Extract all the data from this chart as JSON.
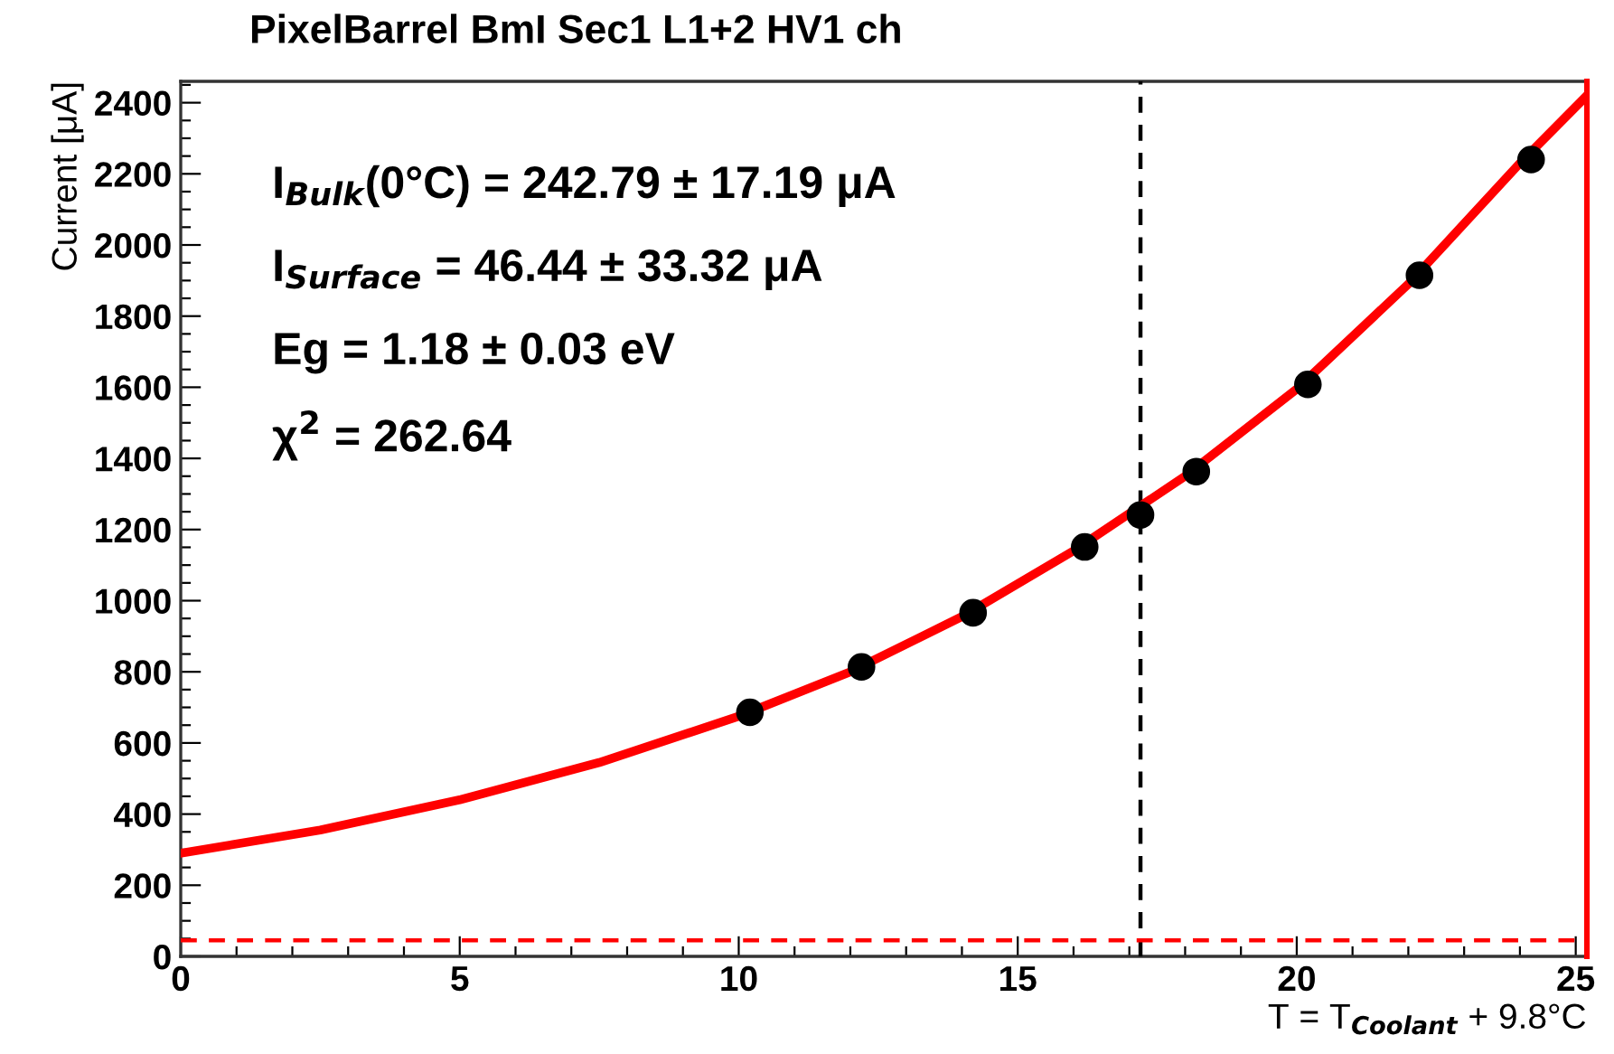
{
  "chart_data": {
    "type": "scatter",
    "title": "PixelBarrel BmI Sec1 L1+2 HV1 ch",
    "xlabel": "T = T$_{Coolant}$ + 9.8°C",
    "ylabel": "Current [μA]",
    "series": [
      {
        "color": "#000000",
        "marker": "circle",
        "x": [
          10.2,
          12.2,
          14.2,
          16.2,
          17.2,
          18.2,
          20.2,
          22.2,
          24.2
        ],
        "values": [
          686,
          814,
          966,
          1151,
          1241,
          1363,
          1608,
          1915,
          2240
        ]
      },
      {
        "type": "line",
        "color": "#ff0000",
        "line_style": "solid",
        "x": [
          0,
          2.5,
          5,
          7.5,
          10,
          12,
          14,
          16,
          18,
          20,
          22,
          24,
          25.2
        ],
        "values": [
          290,
          355,
          440,
          545,
          675,
          800,
          955,
          1140,
          1350,
          1595,
          1890,
          2230,
          2420
        ]
      }
    ],
    "ref_lines": [
      {
        "axis": "x",
        "value": 17.2,
        "color": "#000000",
        "line_style": "dashed"
      },
      {
        "axis": "y",
        "value": 45,
        "color": "#ff0000",
        "line_style": "dashed"
      },
      {
        "axis": "x",
        "value": 25.2,
        "color": "#ff0000",
        "line_style": "solid"
      }
    ],
    "annotations": [
      "I$_{Bulk}$(0°C) = 242.79 ± 17.19 μA",
      "I$_{Surface}$ = 46.44 ± 33.32 μA",
      "Eg = 1.18 ± 0.03 eV",
      "χ$^{2}$ = 262.64"
    ],
    "xlim": [
      0,
      25.2
    ],
    "ylim": [
      0,
      2460
    ],
    "xticks": [
      0,
      5,
      10,
      15,
      20,
      25
    ],
    "yticks": [
      0,
      200,
      400,
      600,
      800,
      1000,
      1200,
      1400,
      1600,
      1800,
      2000,
      2200,
      2400
    ],
    "grid": false,
    "legend": false
  }
}
